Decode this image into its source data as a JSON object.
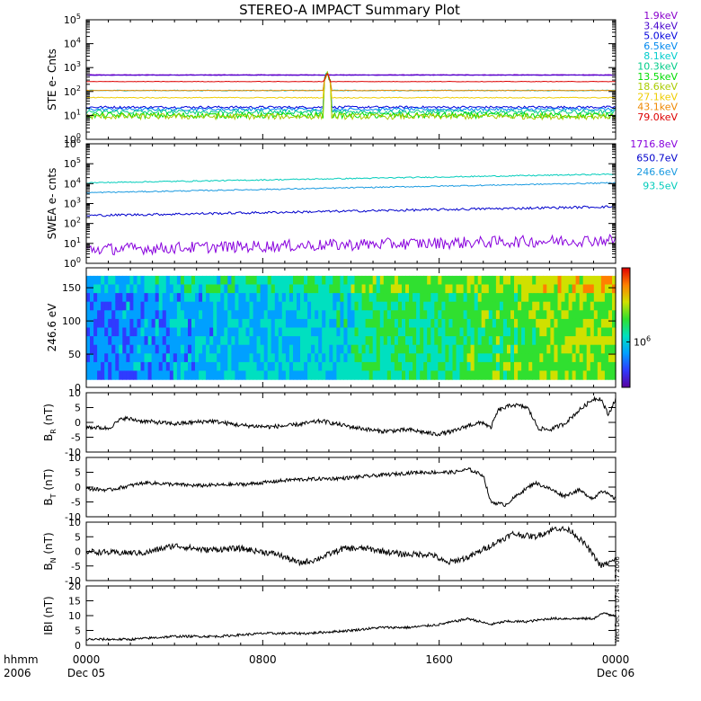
{
  "title": "STEREO-A IMPACT Summary Plot",
  "colors": {
    "frame": "#000000",
    "background": "#ffffff"
  },
  "x_axis": {
    "corner_labels": [
      "hhmm",
      "2006"
    ],
    "ticks": [
      {
        "value": 0,
        "hhmm": "0000",
        "date": "Dec 05"
      },
      {
        "value": 480,
        "hhmm": "0800",
        "date": ""
      },
      {
        "value": 960,
        "hhmm": "1600",
        "date": ""
      },
      {
        "value": 1440,
        "hhmm": "0000",
        "date": "Dec 06"
      }
    ],
    "range_minutes": [
      0,
      1440
    ]
  },
  "side_stamp": "Wed Dec 13 07:44:17 2006",
  "chart_data": [
    {
      "id": "ste",
      "type": "line",
      "ylabel": "STE e- Cnts",
      "yscale": "log",
      "ylim_exp": [
        0,
        5
      ],
      "ytick_labels": [
        "10^0",
        "10^1",
        "10^2",
        "10^3",
        "10^4",
        "10^5"
      ],
      "spike_at_minute": 655,
      "legend": "right",
      "series": [
        {
          "name": "1.9keV",
          "color": "#8800cc",
          "level": 500,
          "spread": 0.01
        },
        {
          "name": "3.4keV",
          "color": "#4400cc",
          "level": 480,
          "spread": 0.01
        },
        {
          "name": "5.0keV",
          "color": "#0000dd",
          "level": 22,
          "spread": 0.05
        },
        {
          "name": "6.5keV",
          "color": "#0088ee",
          "level": 18,
          "spread": 0.06
        },
        {
          "name": "8.1keV",
          "color": "#00cccc",
          "level": 110,
          "spread": 0.02
        },
        {
          "name": "10.3keV",
          "color": "#00cc88",
          "level": 14,
          "spread": 0.09
        },
        {
          "name": "13.5keV",
          "color": "#00dd00",
          "level": 10,
          "spread": 0.12
        },
        {
          "name": "18.6keV",
          "color": "#aacc00",
          "level": 9,
          "spread": 0.12
        },
        {
          "name": "27.1keV",
          "color": "#eecc00",
          "level": 55,
          "spread": 0.02
        },
        {
          "name": "43.1keV",
          "color": "#ee8800",
          "level": 110,
          "spread": 0.01
        },
        {
          "name": "79.0keV",
          "color": "#dd0000",
          "level": 260,
          "spread": 0.01
        }
      ]
    },
    {
      "id": "swea",
      "type": "line",
      "ylabel": "SWEA e- cnts",
      "yscale": "log",
      "ylim_exp": [
        0,
        6
      ],
      "ytick_labels": [
        "10^0",
        "10^1",
        "10^2",
        "10^3",
        "10^4",
        "10^5",
        "10^6"
      ],
      "legend": "right",
      "series": [
        {
          "name": "1716.8eV",
          "color": "#8800dd",
          "start": 5,
          "end": 15,
          "spread": 0.3
        },
        {
          "name": "650.7eV",
          "color": "#0000cc",
          "start": 250,
          "end": 700,
          "spread": 0.06
        },
        {
          "name": "246.6eV",
          "color": "#1a9ae0",
          "start": 3500,
          "end": 11000,
          "spread": 0.03
        },
        {
          "name": "93.5eV",
          "color": "#00ccbb",
          "start": 11000,
          "end": 30000,
          "spread": 0.03
        }
      ]
    },
    {
      "id": "pad",
      "type": "heatmap",
      "ylabel": "246.6 eV",
      "ylim": [
        0,
        180
      ],
      "yticks": [
        0,
        50,
        100,
        150
      ],
      "value_range": [
        0,
        180
      ],
      "colorbar_label": "10^6",
      "colorbar_colors": [
        "#5a00a0",
        "#2f3bff",
        "#00a0ff",
        "#00e0c0",
        "#30e030",
        "#d0e000",
        "#ff8000",
        "#e00000"
      ]
    },
    {
      "id": "br",
      "type": "line",
      "ylabel_main": "B",
      "ylabel_sub": "R",
      "ylabel_unit": " (nT)",
      "ylim": [
        -10,
        10
      ],
      "yticks": [
        -10,
        -5,
        0,
        5,
        10
      ],
      "color": "#000000",
      "keypoints": [
        [
          0,
          -1.5
        ],
        [
          60,
          -2
        ],
        [
          100,
          1.5
        ],
        [
          150,
          0.5
        ],
        [
          240,
          -0.5
        ],
        [
          340,
          0.5
        ],
        [
          420,
          -1
        ],
        [
          500,
          -1.5
        ],
        [
          560,
          -1
        ],
        [
          640,
          0.5
        ],
        [
          720,
          -1.5
        ],
        [
          800,
          -3
        ],
        [
          880,
          -2.5
        ],
        [
          950,
          -4
        ],
        [
          1000,
          -3
        ],
        [
          1040,
          -1
        ],
        [
          1080,
          0
        ],
        [
          1100,
          -2
        ],
        [
          1120,
          4
        ],
        [
          1160,
          6
        ],
        [
          1200,
          5
        ],
        [
          1230,
          -2
        ],
        [
          1260,
          -2.5
        ],
        [
          1300,
          -0.5
        ],
        [
          1340,
          4
        ],
        [
          1380,
          8
        ],
        [
          1400,
          8
        ],
        [
          1420,
          2.5
        ],
        [
          1440,
          8
        ]
      ],
      "noise": 0.7
    },
    {
      "id": "bt",
      "type": "line",
      "ylabel_main": "B",
      "ylabel_sub": "T",
      "ylabel_unit": " (nT)",
      "ylim": [
        -10,
        10
      ],
      "yticks": [
        -10,
        -5,
        0,
        5,
        10
      ],
      "color": "#000000",
      "keypoints": [
        [
          0,
          -0.5
        ],
        [
          60,
          -1
        ],
        [
          160,
          1.5
        ],
        [
          300,
          0.5
        ],
        [
          440,
          1
        ],
        [
          560,
          2.5
        ],
        [
          700,
          3
        ],
        [
          800,
          4
        ],
        [
          900,
          5
        ],
        [
          1000,
          5
        ],
        [
          1040,
          6
        ],
        [
          1080,
          4
        ],
        [
          1100,
          -5
        ],
        [
          1140,
          -6
        ],
        [
          1180,
          -2
        ],
        [
          1220,
          1.5
        ],
        [
          1260,
          -0.5
        ],
        [
          1300,
          -3
        ],
        [
          1340,
          -1
        ],
        [
          1380,
          -4
        ],
        [
          1400,
          -1
        ],
        [
          1440,
          -4
        ]
      ],
      "noise": 0.6
    },
    {
      "id": "bn",
      "type": "line",
      "ylabel_main": "B",
      "ylabel_sub": "N",
      "ylabel_unit": " (nT)",
      "ylim": [
        -10,
        10
      ],
      "yticks": [
        -10,
        -5,
        0,
        5,
        10
      ],
      "color": "#000000",
      "keypoints": [
        [
          0,
          0
        ],
        [
          80,
          -0.5
        ],
        [
          160,
          -0.5
        ],
        [
          240,
          2
        ],
        [
          320,
          0.5
        ],
        [
          420,
          1
        ],
        [
          520,
          -1
        ],
        [
          580,
          -4
        ],
        [
          620,
          -3
        ],
        [
          700,
          1
        ],
        [
          760,
          1
        ],
        [
          860,
          -1
        ],
        [
          940,
          -1
        ],
        [
          980,
          -4
        ],
        [
          1040,
          -2
        ],
        [
          1100,
          2
        ],
        [
          1160,
          6
        ],
        [
          1220,
          5
        ],
        [
          1280,
          8
        ],
        [
          1320,
          7
        ],
        [
          1360,
          2
        ],
        [
          1400,
          -5
        ],
        [
          1440,
          -3
        ]
      ],
      "noise": 1.0
    },
    {
      "id": "bmag",
      "type": "line",
      "ylabel_main": "IBI (nT)",
      "ylim": [
        0,
        20
      ],
      "yticks": [
        0,
        5,
        10,
        15,
        20
      ],
      "color": "#000000",
      "keypoints": [
        [
          0,
          2
        ],
        [
          120,
          2
        ],
        [
          240,
          3
        ],
        [
          360,
          3
        ],
        [
          480,
          4
        ],
        [
          600,
          4
        ],
        [
          720,
          5
        ],
        [
          800,
          6
        ],
        [
          880,
          6
        ],
        [
          960,
          7
        ],
        [
          1000,
          8
        ],
        [
          1040,
          9
        ],
        [
          1100,
          7
        ],
        [
          1140,
          8
        ],
        [
          1200,
          8
        ],
        [
          1260,
          9
        ],
        [
          1320,
          9
        ],
        [
          1380,
          9
        ],
        [
          1410,
          11
        ],
        [
          1440,
          10
        ]
      ],
      "noise": 0.4
    }
  ]
}
